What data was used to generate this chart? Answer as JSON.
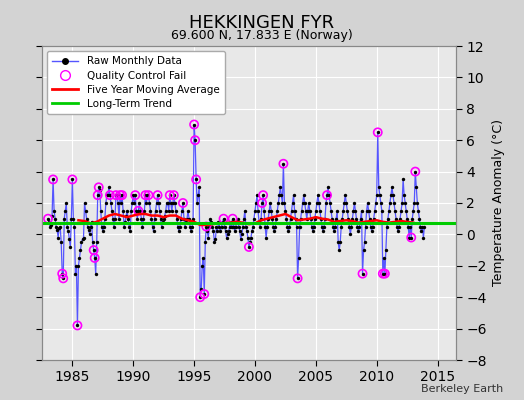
{
  "title": "HEKKINGEN FYR",
  "subtitle": "69.600 N, 17.833 E (Norway)",
  "ylabel": "Temperature Anomaly (°C)",
  "watermark": "Berkeley Earth",
  "xlim": [
    1982.5,
    2016.5
  ],
  "ylim": [
    -8,
    12
  ],
  "yticks": [
    -8,
    -6,
    -4,
    -2,
    0,
    2,
    4,
    6,
    8,
    10,
    12
  ],
  "xticks": [
    1985,
    1990,
    1995,
    2000,
    2005,
    2010,
    2015
  ],
  "background_color": "#d3d3d3",
  "plot_bg_color": "#e8e8e8",
  "grid_color": "#ffffff",
  "long_term_trend_value": 0.7,
  "long_term_trend_color": "#00cc00",
  "moving_avg_color": "#ff0000",
  "raw_line_color": "#5555ff",
  "raw_dot_color": "#000000",
  "qc_fail_color": "#ff00ff",
  "raw_data": [
    [
      1983.0,
      1.0
    ],
    [
      1983.083,
      0.8
    ],
    [
      1983.167,
      0.5
    ],
    [
      1983.25,
      0.6
    ],
    [
      1983.333,
      1.2
    ],
    [
      1983.417,
      3.5
    ],
    [
      1983.5,
      1.5
    ],
    [
      1983.583,
      1.0
    ],
    [
      1983.667,
      0.5
    ],
    [
      1983.75,
      0.3
    ],
    [
      1983.833,
      -0.2
    ],
    [
      1983.917,
      0.4
    ],
    [
      1984.0,
      0.5
    ],
    [
      1984.083,
      -0.5
    ],
    [
      1984.167,
      -2.5
    ],
    [
      1984.25,
      -2.8
    ],
    [
      1984.333,
      1.0
    ],
    [
      1984.417,
      1.5
    ],
    [
      1984.5,
      2.0
    ],
    [
      1984.583,
      0.5
    ],
    [
      1984.667,
      0.2
    ],
    [
      1984.75,
      -0.3
    ],
    [
      1984.833,
      -0.8
    ],
    [
      1984.917,
      1.0
    ],
    [
      1985.0,
      3.5
    ],
    [
      1985.083,
      1.0
    ],
    [
      1985.167,
      0.5
    ],
    [
      1985.25,
      -2.5
    ],
    [
      1985.333,
      -2.0
    ],
    [
      1985.417,
      -5.8
    ],
    [
      1985.5,
      -2.0
    ],
    [
      1985.583,
      -1.5
    ],
    [
      1985.667,
      -1.0
    ],
    [
      1985.75,
      -0.5
    ],
    [
      1985.833,
      -0.3
    ],
    [
      1985.917,
      -0.2
    ],
    [
      1986.0,
      2.0
    ],
    [
      1986.083,
      1.5
    ],
    [
      1986.167,
      1.0
    ],
    [
      1986.25,
      0.5
    ],
    [
      1986.333,
      0.3
    ],
    [
      1986.417,
      0.0
    ],
    [
      1986.5,
      0.5
    ],
    [
      1986.583,
      0.8
    ],
    [
      1986.667,
      -0.5
    ],
    [
      1986.75,
      -1.0
    ],
    [
      1986.833,
      -1.5
    ],
    [
      1986.917,
      -2.5
    ],
    [
      1987.0,
      -0.5
    ],
    [
      1987.083,
      2.5
    ],
    [
      1987.167,
      3.0
    ],
    [
      1987.25,
      2.8
    ],
    [
      1987.333,
      1.5
    ],
    [
      1987.417,
      0.5
    ],
    [
      1987.5,
      0.2
    ],
    [
      1987.583,
      0.5
    ],
    [
      1987.667,
      1.0
    ],
    [
      1987.75,
      2.0
    ],
    [
      1987.833,
      2.5
    ],
    [
      1987.917,
      2.5
    ],
    [
      1988.0,
      3.0
    ],
    [
      1988.083,
      2.5
    ],
    [
      1988.167,
      2.0
    ],
    [
      1988.25,
      1.5
    ],
    [
      1988.333,
      1.0
    ],
    [
      1988.417,
      0.5
    ],
    [
      1988.5,
      1.0
    ],
    [
      1988.583,
      2.5
    ],
    [
      1988.667,
      2.5
    ],
    [
      1988.75,
      2.0
    ],
    [
      1988.833,
      1.0
    ],
    [
      1988.917,
      2.5
    ],
    [
      1989.0,
      2.0
    ],
    [
      1989.083,
      2.5
    ],
    [
      1989.167,
      1.5
    ],
    [
      1989.25,
      0.5
    ],
    [
      1989.333,
      0.8
    ],
    [
      1989.417,
      1.2
    ],
    [
      1989.5,
      1.5
    ],
    [
      1989.583,
      1.0
    ],
    [
      1989.667,
      0.5
    ],
    [
      1989.75,
      0.2
    ],
    [
      1989.833,
      1.5
    ],
    [
      1989.917,
      2.0
    ],
    [
      1990.0,
      2.5
    ],
    [
      1990.083,
      2.0
    ],
    [
      1990.167,
      2.5
    ],
    [
      1990.25,
      1.5
    ],
    [
      1990.333,
      1.0
    ],
    [
      1990.417,
      1.5
    ],
    [
      1990.5,
      2.0
    ],
    [
      1990.583,
      1.5
    ],
    [
      1990.667,
      1.0
    ],
    [
      1990.75,
      0.5
    ],
    [
      1990.833,
      1.0
    ],
    [
      1990.917,
      1.5
    ],
    [
      1991.0,
      2.5
    ],
    [
      1991.083,
      2.0
    ],
    [
      1991.167,
      2.5
    ],
    [
      1991.25,
      2.5
    ],
    [
      1991.333,
      2.0
    ],
    [
      1991.417,
      1.5
    ],
    [
      1991.5,
      1.0
    ],
    [
      1991.583,
      0.5
    ],
    [
      1991.667,
      0.2
    ],
    [
      1991.75,
      1.0
    ],
    [
      1991.833,
      1.5
    ],
    [
      1991.917,
      2.0
    ],
    [
      1992.0,
      2.5
    ],
    [
      1992.083,
      2.0
    ],
    [
      1992.167,
      1.5
    ],
    [
      1992.25,
      1.0
    ],
    [
      1992.333,
      0.5
    ],
    [
      1992.417,
      0.8
    ],
    [
      1992.5,
      1.0
    ],
    [
      1992.583,
      1.2
    ],
    [
      1992.667,
      1.5
    ],
    [
      1992.75,
      2.0
    ],
    [
      1992.833,
      2.0
    ],
    [
      1992.917,
      1.5
    ],
    [
      1993.0,
      2.5
    ],
    [
      1993.083,
      2.0
    ],
    [
      1993.167,
      1.5
    ],
    [
      1993.25,
      2.0
    ],
    [
      1993.333,
      2.5
    ],
    [
      1993.417,
      2.0
    ],
    [
      1993.5,
      1.5
    ],
    [
      1993.583,
      1.0
    ],
    [
      1993.667,
      0.5
    ],
    [
      1993.75,
      0.2
    ],
    [
      1993.833,
      0.5
    ],
    [
      1993.917,
      1.0
    ],
    [
      1994.0,
      1.5
    ],
    [
      1994.083,
      2.0
    ],
    [
      1994.167,
      1.0
    ],
    [
      1994.25,
      0.5
    ],
    [
      1994.333,
      0.8
    ],
    [
      1994.417,
      1.0
    ],
    [
      1994.5,
      1.5
    ],
    [
      1994.583,
      1.0
    ],
    [
      1994.667,
      0.5
    ],
    [
      1994.75,
      0.2
    ],
    [
      1994.833,
      0.5
    ],
    [
      1994.917,
      1.0
    ],
    [
      1995.0,
      7.0
    ],
    [
      1995.083,
      6.0
    ],
    [
      1995.167,
      3.5
    ],
    [
      1995.25,
      2.0
    ],
    [
      1995.333,
      2.5
    ],
    [
      1995.417,
      3.0
    ],
    [
      1995.5,
      -4.0
    ],
    [
      1995.583,
      -3.5
    ],
    [
      1995.667,
      -2.0
    ],
    [
      1995.75,
      -1.5
    ],
    [
      1995.833,
      -3.8
    ],
    [
      1995.917,
      -0.5
    ],
    [
      1996.0,
      0.5
    ],
    [
      1996.083,
      0.2
    ],
    [
      1996.167,
      -0.2
    ],
    [
      1996.25,
      0.5
    ],
    [
      1996.333,
      1.0
    ],
    [
      1996.417,
      0.8
    ],
    [
      1996.5,
      0.5
    ],
    [
      1996.583,
      0.2
    ],
    [
      1996.667,
      -0.5
    ],
    [
      1996.75,
      -0.3
    ],
    [
      1996.833,
      0.5
    ],
    [
      1996.917,
      0.2
    ],
    [
      1997.0,
      0.8
    ],
    [
      1997.083,
      0.5
    ],
    [
      1997.167,
      0.2
    ],
    [
      1997.25,
      0.5
    ],
    [
      1997.333,
      0.8
    ],
    [
      1997.417,
      1.0
    ],
    [
      1997.5,
      0.5
    ],
    [
      1997.583,
      0.2
    ],
    [
      1997.667,
      -0.2
    ],
    [
      1997.75,
      0.0
    ],
    [
      1997.833,
      0.2
    ],
    [
      1997.917,
      0.5
    ],
    [
      1998.0,
      0.8
    ],
    [
      1998.083,
      0.5
    ],
    [
      1998.167,
      1.0
    ],
    [
      1998.25,
      0.5
    ],
    [
      1998.333,
      0.2
    ],
    [
      1998.417,
      0.5
    ],
    [
      1998.5,
      0.8
    ],
    [
      1998.583,
      1.0
    ],
    [
      1998.667,
      0.5
    ],
    [
      1998.75,
      0.2
    ],
    [
      1998.833,
      -0.3
    ],
    [
      1998.917,
      0.0
    ],
    [
      1999.0,
      0.5
    ],
    [
      1999.083,
      1.0
    ],
    [
      1999.167,
      1.5
    ],
    [
      1999.25,
      0.5
    ],
    [
      1999.333,
      0.2
    ],
    [
      1999.417,
      -0.2
    ],
    [
      1999.5,
      -0.8
    ],
    [
      1999.583,
      -0.5
    ],
    [
      1999.667,
      -0.2
    ],
    [
      1999.75,
      0.2
    ],
    [
      1999.833,
      0.5
    ],
    [
      1999.917,
      1.0
    ],
    [
      2000.0,
      1.5
    ],
    [
      2000.083,
      2.0
    ],
    [
      2000.167,
      2.5
    ],
    [
      2000.25,
      1.5
    ],
    [
      2000.333,
      0.8
    ],
    [
      2000.417,
      0.5
    ],
    [
      2000.5,
      1.0
    ],
    [
      2000.583,
      2.0
    ],
    [
      2000.667,
      2.5
    ],
    [
      2000.75,
      1.5
    ],
    [
      2000.833,
      0.5
    ],
    [
      2000.917,
      -0.2
    ],
    [
      2001.0,
      0.5
    ],
    [
      2001.083,
      1.0
    ],
    [
      2001.167,
      1.5
    ],
    [
      2001.25,
      2.0
    ],
    [
      2001.333,
      1.5
    ],
    [
      2001.417,
      1.0
    ],
    [
      2001.5,
      0.5
    ],
    [
      2001.583,
      0.2
    ],
    [
      2001.667,
      0.5
    ],
    [
      2001.75,
      1.0
    ],
    [
      2001.833,
      1.5
    ],
    [
      2001.917,
      2.0
    ],
    [
      2002.0,
      2.5
    ],
    [
      2002.083,
      3.0
    ],
    [
      2002.167,
      2.5
    ],
    [
      2002.25,
      2.0
    ],
    [
      2002.333,
      4.5
    ],
    [
      2002.417,
      2.0
    ],
    [
      2002.5,
      1.5
    ],
    [
      2002.583,
      1.0
    ],
    [
      2002.667,
      0.5
    ],
    [
      2002.75,
      0.2
    ],
    [
      2002.833,
      0.5
    ],
    [
      2002.917,
      1.0
    ],
    [
      2003.0,
      1.5
    ],
    [
      2003.083,
      2.0
    ],
    [
      2003.167,
      2.5
    ],
    [
      2003.25,
      1.5
    ],
    [
      2003.333,
      1.0
    ],
    [
      2003.417,
      0.5
    ],
    [
      2003.5,
      -2.8
    ],
    [
      2003.583,
      -1.5
    ],
    [
      2003.667,
      0.5
    ],
    [
      2003.75,
      1.0
    ],
    [
      2003.833,
      1.5
    ],
    [
      2003.917,
      2.0
    ],
    [
      2004.0,
      2.5
    ],
    [
      2004.083,
      2.0
    ],
    [
      2004.167,
      1.5
    ],
    [
      2004.25,
      1.0
    ],
    [
      2004.333,
      1.5
    ],
    [
      2004.417,
      2.0
    ],
    [
      2004.5,
      1.5
    ],
    [
      2004.583,
      1.0
    ],
    [
      2004.667,
      0.5
    ],
    [
      2004.75,
      0.2
    ],
    [
      2004.833,
      0.5
    ],
    [
      2004.917,
      1.0
    ],
    [
      2005.0,
      1.5
    ],
    [
      2005.083,
      2.0
    ],
    [
      2005.167,
      2.5
    ],
    [
      2005.25,
      2.0
    ],
    [
      2005.333,
      1.5
    ],
    [
      2005.417,
      1.0
    ],
    [
      2005.5,
      0.5
    ],
    [
      2005.583,
      0.2
    ],
    [
      2005.667,
      0.5
    ],
    [
      2005.75,
      1.0
    ],
    [
      2005.833,
      2.0
    ],
    [
      2005.917,
      2.5
    ],
    [
      2006.0,
      3.0
    ],
    [
      2006.083,
      2.5
    ],
    [
      2006.167,
      2.0
    ],
    [
      2006.25,
      1.5
    ],
    [
      2006.333,
      1.0
    ],
    [
      2006.417,
      0.5
    ],
    [
      2006.5,
      0.2
    ],
    [
      2006.583,
      0.5
    ],
    [
      2006.667,
      1.0
    ],
    [
      2006.75,
      1.5
    ],
    [
      2006.833,
      -0.5
    ],
    [
      2006.917,
      -1.0
    ],
    [
      2007.0,
      -0.5
    ],
    [
      2007.083,
      0.5
    ],
    [
      2007.167,
      1.0
    ],
    [
      2007.25,
      1.5
    ],
    [
      2007.333,
      2.0
    ],
    [
      2007.417,
      2.5
    ],
    [
      2007.5,
      2.0
    ],
    [
      2007.583,
      1.5
    ],
    [
      2007.667,
      1.0
    ],
    [
      2007.75,
      0.5
    ],
    [
      2007.833,
      0.0
    ],
    [
      2007.917,
      0.5
    ],
    [
      2008.0,
      1.0
    ],
    [
      2008.083,
      1.5
    ],
    [
      2008.167,
      2.0
    ],
    [
      2008.25,
      1.5
    ],
    [
      2008.333,
      1.0
    ],
    [
      2008.417,
      0.5
    ],
    [
      2008.5,
      0.2
    ],
    [
      2008.583,
      0.5
    ],
    [
      2008.667,
      1.0
    ],
    [
      2008.75,
      1.5
    ],
    [
      2008.833,
      -2.5
    ],
    [
      2008.917,
      -1.0
    ],
    [
      2009.0,
      -0.5
    ],
    [
      2009.083,
      0.5
    ],
    [
      2009.167,
      1.5
    ],
    [
      2009.25,
      2.0
    ],
    [
      2009.333,
      1.5
    ],
    [
      2009.417,
      1.0
    ],
    [
      2009.5,
      0.5
    ],
    [
      2009.583,
      0.2
    ],
    [
      2009.667,
      0.5
    ],
    [
      2009.75,
      1.0
    ],
    [
      2009.833,
      1.5
    ],
    [
      2009.917,
      2.0
    ],
    [
      2010.0,
      2.5
    ],
    [
      2010.083,
      6.5
    ],
    [
      2010.167,
      3.0
    ],
    [
      2010.25,
      2.5
    ],
    [
      2010.333,
      2.0
    ],
    [
      2010.417,
      1.5
    ],
    [
      2010.5,
      -2.5
    ],
    [
      2010.583,
      -1.5
    ],
    [
      2010.667,
      -2.5
    ],
    [
      2010.75,
      -1.0
    ],
    [
      2010.833,
      0.5
    ],
    [
      2010.917,
      1.0
    ],
    [
      2011.0,
      1.5
    ],
    [
      2011.083,
      2.0
    ],
    [
      2011.167,
      2.5
    ],
    [
      2011.25,
      3.0
    ],
    [
      2011.333,
      2.5
    ],
    [
      2011.417,
      2.0
    ],
    [
      2011.5,
      1.5
    ],
    [
      2011.583,
      1.0
    ],
    [
      2011.667,
      0.5
    ],
    [
      2011.75,
      0.2
    ],
    [
      2011.833,
      0.5
    ],
    [
      2011.917,
      1.0
    ],
    [
      2012.0,
      1.5
    ],
    [
      2012.083,
      2.0
    ],
    [
      2012.167,
      3.5
    ],
    [
      2012.25,
      2.5
    ],
    [
      2012.333,
      2.0
    ],
    [
      2012.417,
      1.5
    ],
    [
      2012.5,
      1.0
    ],
    [
      2012.583,
      0.5
    ],
    [
      2012.667,
      -0.2
    ],
    [
      2012.75,
      0.5
    ],
    [
      2012.833,
      -0.2
    ],
    [
      2012.917,
      1.0
    ],
    [
      2013.0,
      1.5
    ],
    [
      2013.083,
      2.0
    ],
    [
      2013.167,
      4.0
    ],
    [
      2013.25,
      3.0
    ],
    [
      2013.333,
      2.0
    ],
    [
      2013.417,
      1.5
    ],
    [
      2013.5,
      1.0
    ],
    [
      2013.583,
      0.5
    ],
    [
      2013.667,
      0.2
    ],
    [
      2013.75,
      0.5
    ],
    [
      2013.833,
      -0.2
    ],
    [
      2013.917,
      0.5
    ]
  ],
  "qc_fail_points": [
    [
      1983.0,
      1.0
    ],
    [
      1983.417,
      3.5
    ],
    [
      1984.167,
      -2.5
    ],
    [
      1984.25,
      -2.8
    ],
    [
      1985.0,
      3.5
    ],
    [
      1985.417,
      -5.8
    ],
    [
      1986.75,
      -1.0
    ],
    [
      1986.833,
      -1.5
    ],
    [
      1987.083,
      2.5
    ],
    [
      1987.167,
      3.0
    ],
    [
      1988.083,
      2.5
    ],
    [
      1988.583,
      2.5
    ],
    [
      1988.917,
      2.5
    ],
    [
      1989.083,
      2.5
    ],
    [
      1990.167,
      2.5
    ],
    [
      1990.417,
      1.5
    ],
    [
      1991.0,
      2.5
    ],
    [
      1991.25,
      2.5
    ],
    [
      1992.0,
      2.5
    ],
    [
      1993.0,
      2.5
    ],
    [
      1993.333,
      2.5
    ],
    [
      1994.083,
      2.0
    ],
    [
      1995.0,
      7.0
    ],
    [
      1995.083,
      6.0
    ],
    [
      1995.167,
      3.5
    ],
    [
      1995.5,
      -4.0
    ],
    [
      1995.833,
      -3.8
    ],
    [
      1996.0,
      0.5
    ],
    [
      1997.417,
      1.0
    ],
    [
      1998.167,
      1.0
    ],
    [
      1999.5,
      -0.8
    ],
    [
      2000.583,
      2.0
    ],
    [
      2000.667,
      2.5
    ],
    [
      2002.333,
      4.5
    ],
    [
      2003.5,
      -2.8
    ],
    [
      2005.917,
      2.5
    ],
    [
      2008.833,
      -2.5
    ],
    [
      2010.083,
      6.5
    ],
    [
      2010.5,
      -2.5
    ],
    [
      2010.667,
      -2.5
    ],
    [
      2012.833,
      -0.2
    ],
    [
      2013.167,
      4.0
    ]
  ],
  "moving_avg": [
    [
      1985.5,
      0.9
    ],
    [
      1986.0,
      0.85
    ],
    [
      1986.5,
      0.7
    ],
    [
      1987.0,
      0.8
    ],
    [
      1987.5,
      1.0
    ],
    [
      1988.0,
      1.2
    ],
    [
      1988.5,
      1.3
    ],
    [
      1989.0,
      1.2
    ],
    [
      1989.5,
      1.1
    ],
    [
      1990.0,
      1.2
    ],
    [
      1990.5,
      1.3
    ],
    [
      1991.0,
      1.3
    ],
    [
      1991.5,
      1.2
    ],
    [
      1992.0,
      1.2
    ],
    [
      1992.5,
      1.1
    ],
    [
      1993.0,
      1.2
    ],
    [
      1993.5,
      1.2
    ],
    [
      1994.0,
      1.0
    ],
    [
      1994.5,
      0.9
    ],
    [
      1995.0,
      0.8
    ],
    [
      1995.5,
      0.6
    ],
    [
      1996.0,
      0.6
    ],
    [
      1996.5,
      0.65
    ],
    [
      1997.0,
      0.7
    ],
    [
      1997.5,
      0.72
    ],
    [
      1998.0,
      0.75
    ],
    [
      1998.5,
      0.8
    ],
    [
      1999.0,
      0.75
    ],
    [
      1999.5,
      0.65
    ],
    [
      2000.0,
      0.7
    ],
    [
      2000.5,
      0.9
    ],
    [
      2001.0,
      1.0
    ],
    [
      2001.5,
      1.1
    ],
    [
      2002.0,
      1.2
    ],
    [
      2002.5,
      1.3
    ],
    [
      2003.0,
      1.1
    ],
    [
      2003.5,
      0.9
    ],
    [
      2004.0,
      0.95
    ],
    [
      2004.5,
      1.0
    ],
    [
      2005.0,
      1.1
    ],
    [
      2005.5,
      1.0
    ],
    [
      2006.0,
      0.95
    ],
    [
      2006.5,
      0.8
    ],
    [
      2007.0,
      0.85
    ],
    [
      2007.5,
      0.9
    ],
    [
      2008.0,
      0.85
    ],
    [
      2008.5,
      0.75
    ],
    [
      2009.0,
      0.8
    ],
    [
      2009.5,
      0.85
    ],
    [
      2010.0,
      0.9
    ],
    [
      2010.5,
      0.8
    ],
    [
      2011.0,
      0.75
    ],
    [
      2011.5,
      0.8
    ],
    [
      2012.0,
      0.85
    ],
    [
      2012.5,
      0.8
    ],
    [
      2013.0,
      0.75
    ]
  ]
}
